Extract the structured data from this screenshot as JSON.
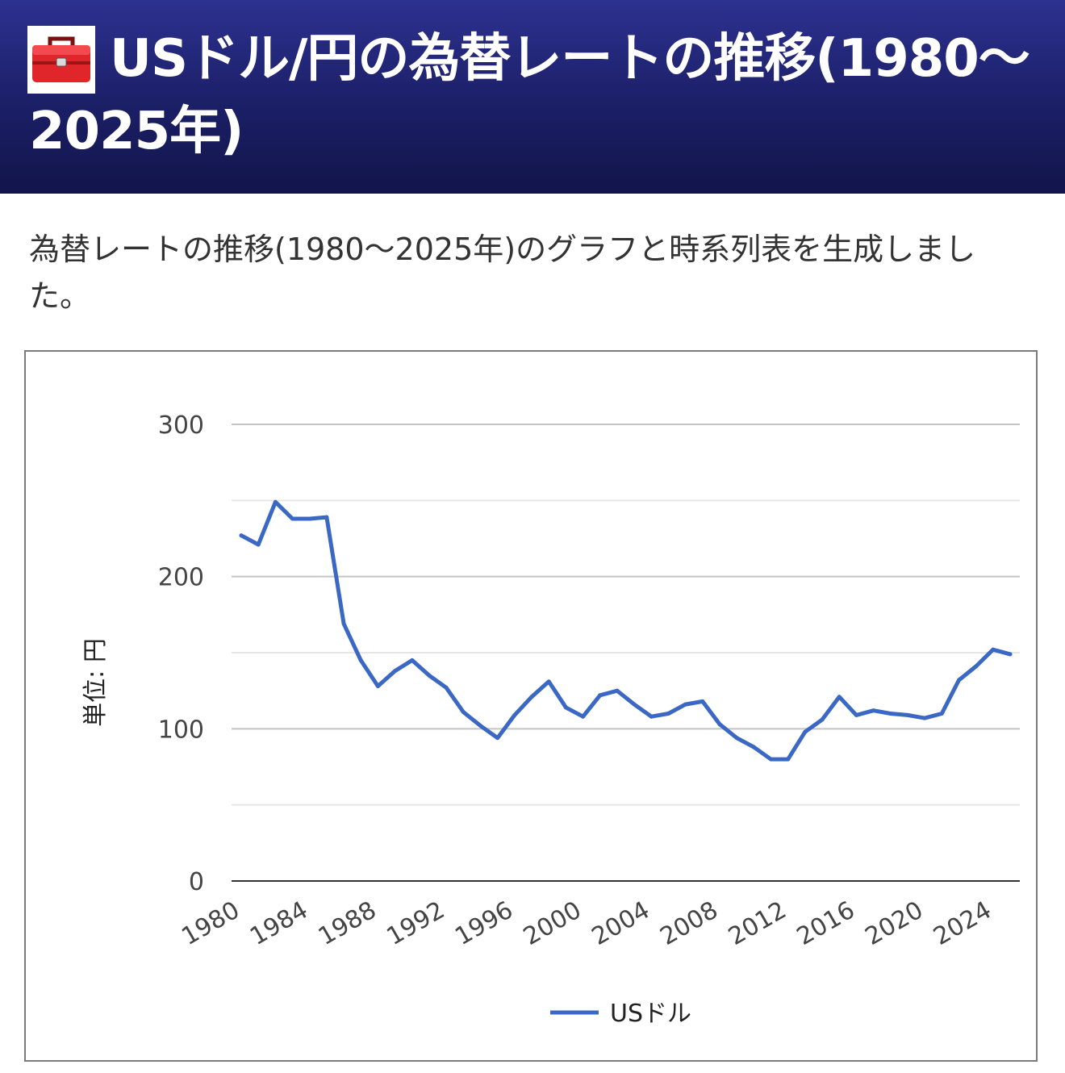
{
  "header": {
    "title": "USドル/円の為替レートの推移(1980〜2025年)",
    "icon": "toolbox-icon",
    "background_color": "#1f2370"
  },
  "intro": {
    "text": "為替レートの推移(1980〜2025年)のグラフと時系列表を生成しました。"
  },
  "chart_data": {
    "type": "line",
    "title": "",
    "xlabel": "",
    "ylabel": "単位: 円",
    "ylim": [
      0,
      300
    ],
    "yticks": [
      "0",
      "100",
      "200",
      "300"
    ],
    "xticks": [
      "1980",
      "1984",
      "1988",
      "1992",
      "1996",
      "2000",
      "2004",
      "2008",
      "2012",
      "2016",
      "2020",
      "2024"
    ],
    "grid": true,
    "legend_position": "bottom",
    "line_color": "#3a68c4",
    "x": [
      1980,
      1981,
      1982,
      1983,
      1984,
      1985,
      1986,
      1987,
      1988,
      1989,
      1990,
      1991,
      1992,
      1993,
      1994,
      1995,
      1996,
      1997,
      1998,
      1999,
      2000,
      2001,
      2002,
      2003,
      2004,
      2005,
      2006,
      2007,
      2008,
      2009,
      2010,
      2011,
      2012,
      2013,
      2014,
      2015,
      2016,
      2017,
      2018,
      2019,
      2020,
      2021,
      2022,
      2023,
      2024,
      2025
    ],
    "series": [
      {
        "name": "USドル",
        "values": [
          227,
          221,
          249,
          238,
          238,
          239,
          169,
          145,
          128,
          138,
          145,
          135,
          127,
          111,
          102,
          94,
          109,
          121,
          131,
          114,
          108,
          122,
          125,
          116,
          108,
          110,
          116,
          118,
          103,
          94,
          88,
          80,
          80,
          98,
          106,
          121,
          109,
          112,
          110,
          109,
          107,
          110,
          132,
          141,
          152,
          149
        ]
      }
    ]
  }
}
